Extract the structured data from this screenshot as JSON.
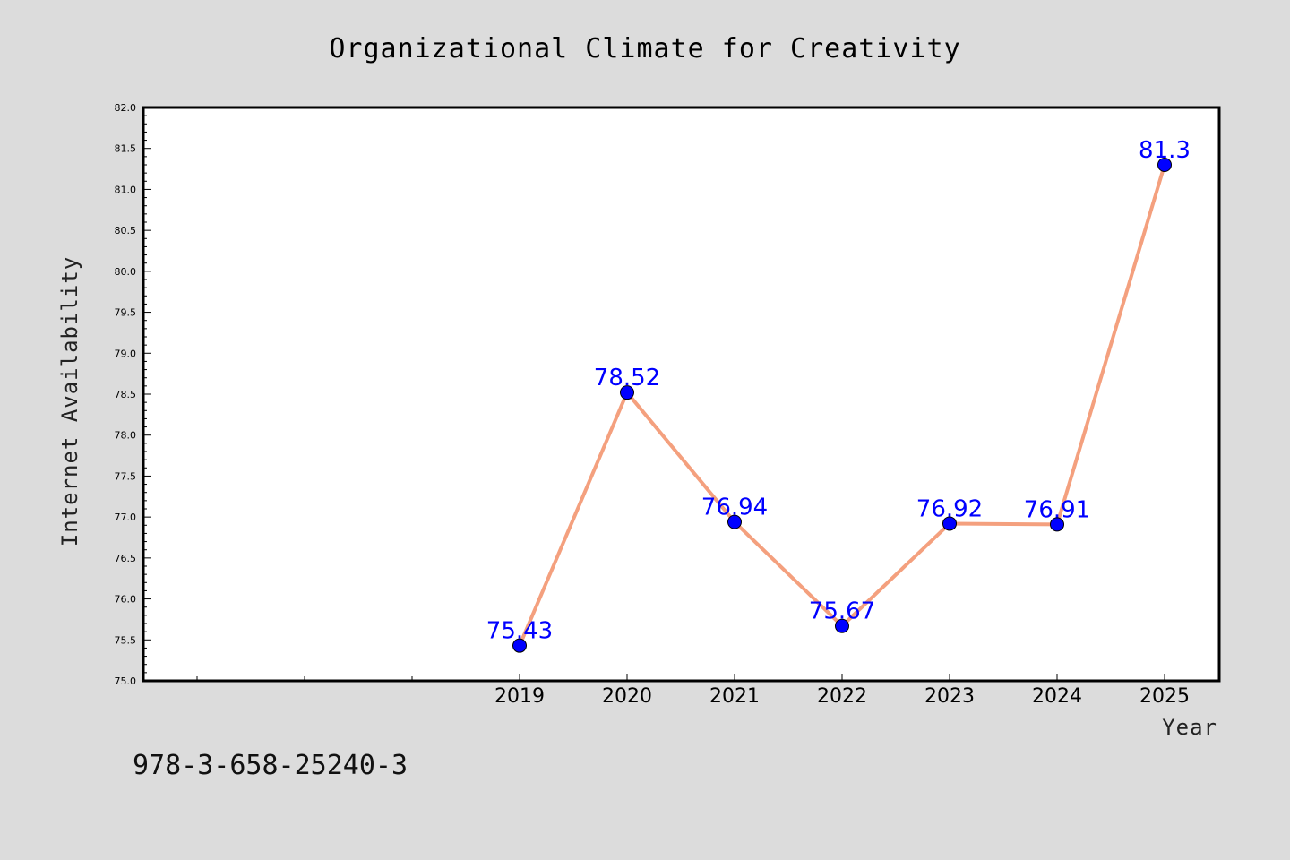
{
  "chart_data": {
    "type": "line",
    "title": "Organizational Climate for Creativity",
    "xlabel": "Year",
    "ylabel": "Internet Availability",
    "categories": [
      "2019",
      "2020",
      "2021",
      "2022",
      "2023",
      "2024",
      "2025"
    ],
    "series": [
      {
        "values": [
          75.43,
          78.52,
          76.94,
          75.67,
          76.92,
          76.91,
          81.3
        ]
      }
    ],
    "data_labels": [
      "75.43",
      "78.52",
      "76.94",
      "75.67",
      "76.92",
      "76.91",
      "81.3"
    ],
    "ylim": [
      75.0,
      82.0
    ],
    "yticks": [
      "75.0",
      "75.5",
      "76.0",
      "76.5",
      "77.0",
      "77.5",
      "78.0",
      "78.5",
      "79.0",
      "79.5",
      "80.0",
      "80.5",
      "81.0",
      "81.5",
      "82.0"
    ],
    "grid": false,
    "line_color": "#f4a07e",
    "marker_color": "#0000ff",
    "label_color": "#0000ff"
  },
  "footer": {
    "isbn": "978-3-658-25240-3"
  }
}
